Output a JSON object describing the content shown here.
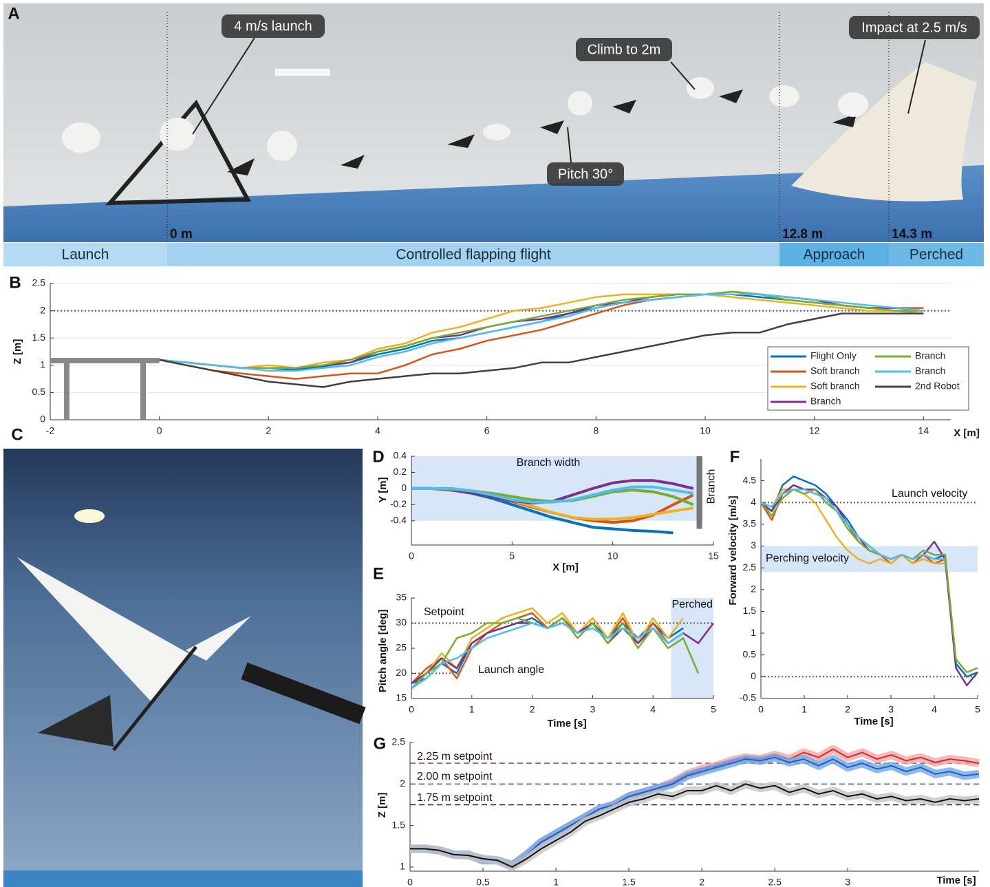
{
  "photo_a": {
    "panel": "A",
    "annotations": [
      "4 m/s launch",
      "Climb to 2m",
      "Pitch 30°",
      "Impact at 2.5 m/s"
    ],
    "distances": [
      "0 m",
      "12.8 m",
      "14.3 m"
    ],
    "phases": [
      "Launch",
      "Controlled flapping flight",
      "Approach",
      "Perched"
    ]
  },
  "photo_c": {
    "panel": "C"
  },
  "chart_data": [
    {
      "panel": "B",
      "type": "line",
      "xlabel": "X [m]",
      "ylabel": "Z [m]",
      "xlim": [
        -2,
        14.5
      ],
      "ylim": [
        0,
        2.5
      ],
      "xticks": [
        -2,
        0,
        2,
        4,
        6,
        8,
        10,
        12,
        14
      ],
      "yticks": [
        0,
        0.5,
        1,
        1.5,
        2,
        2.5
      ],
      "grid": true,
      "legend": "lower right",
      "reference_lines": [
        {
          "value": 2
        }
      ],
      "x": [
        0,
        0.5,
        1,
        1.5,
        2,
        2.5,
        3,
        3.5,
        4,
        4.5,
        5,
        5.5,
        6,
        6.5,
        7,
        7.5,
        8,
        8.5,
        9,
        9.5,
        10,
        10.5,
        11,
        11.5,
        12,
        12.5,
        13,
        13.5,
        14
      ],
      "series": [
        {
          "name": "Flight Only",
          "color": "#0072bd",
          "values": [
            1.1,
            1.05,
            1.0,
            0.95,
            0.95,
            0.92,
            0.98,
            1.05,
            1.2,
            1.3,
            1.45,
            1.5,
            1.6,
            1.7,
            1.8,
            1.95,
            2.05,
            2.15,
            2.2,
            2.25,
            2.3,
            2.3,
            2.25,
            2.2,
            2.15,
            2.1,
            2.05,
            2.05,
            2.0
          ]
        },
        {
          "name": "Soft branch",
          "color": "#d95319",
          "values": [
            1.1,
            1.0,
            0.9,
            0.85,
            0.8,
            0.75,
            0.8,
            0.85,
            0.85,
            1.0,
            1.2,
            1.3,
            1.45,
            1.55,
            1.65,
            1.8,
            1.95,
            2.1,
            2.2,
            2.25,
            2.3,
            2.35,
            2.3,
            2.25,
            2.2,
            2.1,
            2.05,
            2.05,
            2.05
          ]
        },
        {
          "name": "Soft branch",
          "color": "#edb120",
          "values": [
            1.1,
            1.05,
            1.0,
            0.95,
            1.0,
            0.95,
            1.05,
            1.1,
            1.3,
            1.4,
            1.6,
            1.7,
            1.85,
            2.0,
            2.05,
            2.15,
            2.25,
            2.3,
            2.3,
            2.3,
            2.3,
            2.25,
            2.2,
            2.15,
            2.1,
            2.05,
            2.0,
            2.0,
            1.95
          ]
        },
        {
          "name": "Branch",
          "color": "#7e2f8e",
          "values": [
            1.1,
            1.05,
            1.0,
            0.95,
            0.95,
            0.95,
            1.0,
            1.05,
            1.25,
            1.35,
            1.5,
            1.55,
            1.7,
            1.8,
            1.85,
            1.95,
            2.1,
            2.15,
            2.25,
            2.3,
            2.3,
            2.3,
            2.3,
            2.25,
            2.2,
            2.1,
            2.05,
            2.05,
            2.0
          ]
        },
        {
          "name": "Branch",
          "color": "#77ac30",
          "values": [
            1.1,
            1.05,
            1.0,
            0.95,
            0.95,
            0.95,
            1.0,
            1.1,
            1.25,
            1.35,
            1.5,
            1.6,
            1.7,
            1.8,
            1.9,
            2.0,
            2.1,
            2.2,
            2.25,
            2.3,
            2.3,
            2.35,
            2.3,
            2.2,
            2.15,
            2.1,
            2.05,
            2.0,
            2.0
          ]
        },
        {
          "name": "Branch",
          "color": "#4dbeee",
          "values": [
            1.1,
            1.05,
            1.0,
            0.95,
            0.9,
            0.9,
            0.95,
            1.0,
            1.15,
            1.25,
            1.4,
            1.5,
            1.6,
            1.7,
            1.8,
            1.9,
            2.05,
            2.15,
            2.2,
            2.25,
            2.3,
            2.3,
            2.3,
            2.25,
            2.2,
            2.15,
            2.1,
            2.05,
            2.0
          ]
        },
        {
          "name": "2nd Robot",
          "color": "#404040",
          "values": [
            1.1,
            1.0,
            0.9,
            0.8,
            0.7,
            0.65,
            0.6,
            0.7,
            0.75,
            0.8,
            0.85,
            0.85,
            0.9,
            0.95,
            1.05,
            1.05,
            1.15,
            1.25,
            1.35,
            1.45,
            1.55,
            1.6,
            1.6,
            1.75,
            1.85,
            1.95,
            1.95,
            1.95,
            1.95
          ]
        }
      ]
    },
    {
      "panel": "D",
      "type": "line",
      "xlabel": "X [m]",
      "ylabel": "Y [m]",
      "xlim": [
        0,
        15
      ],
      "ylim": [
        -0.7,
        0.4
      ],
      "xticks": [
        0,
        5,
        10,
        15
      ],
      "yticks": [
        -0.4,
        -0.2,
        0,
        0.2,
        0.4
      ],
      "band": {
        "label": "Branch width",
        "range": [
          -0.4,
          0.4
        ]
      },
      "branch": {
        "label": "Branch",
        "x": 14.3
      },
      "x": [
        0,
        1,
        2,
        3,
        4,
        5,
        6,
        7,
        8,
        9,
        10,
        11,
        12,
        13,
        14
      ],
      "series": [
        {
          "color": "#0072bd",
          "values": [
            0,
            0,
            -0.02,
            -0.06,
            -0.12,
            -0.2,
            -0.28,
            -0.36,
            -0.42,
            -0.48,
            -0.5,
            -0.52,
            -0.53,
            -0.55,
            null
          ]
        },
        {
          "color": "#d95319",
          "values": [
            0,
            0,
            -0.02,
            -0.05,
            -0.1,
            -0.16,
            -0.23,
            -0.3,
            -0.36,
            -0.4,
            -0.42,
            -0.4,
            -0.33,
            -0.2,
            -0.08
          ]
        },
        {
          "color": "#edb120",
          "values": [
            0,
            0,
            -0.01,
            -0.04,
            -0.08,
            -0.15,
            -0.22,
            -0.3,
            -0.36,
            -0.38,
            -0.38,
            -0.36,
            -0.32,
            -0.28,
            -0.24
          ]
        },
        {
          "color": "#7e2f8e",
          "values": [
            0,
            0,
            -0.02,
            -0.05,
            -0.1,
            -0.15,
            -0.18,
            -0.16,
            -0.08,
            0,
            0.07,
            0.1,
            0.1,
            0.06,
            0
          ]
        },
        {
          "color": "#77ac30",
          "values": [
            0,
            0,
            -0.01,
            -0.03,
            -0.06,
            -0.1,
            -0.14,
            -0.16,
            -0.15,
            -0.1,
            -0.04,
            -0.02,
            -0.04,
            -0.1,
            -0.2
          ]
        },
        {
          "color": "#4dbeee",
          "values": [
            0,
            0,
            0,
            -0.03,
            -0.08,
            -0.14,
            -0.17,
            -0.17,
            -0.14,
            -0.08,
            -0.02,
            0.02,
            0.02,
            -0.02,
            -0.06
          ]
        }
      ]
    },
    {
      "panel": "E",
      "type": "line",
      "xlabel": "Time [s]",
      "ylabel": "Pitch angle [deg]",
      "xlim": [
        0,
        5
      ],
      "ylim": [
        15,
        35
      ],
      "xticks": [
        0,
        1,
        2,
        3,
        4,
        5
      ],
      "yticks": [
        15,
        20,
        25,
        30,
        35
      ],
      "reference_lines": [
        {
          "value": 30,
          "label": "Setpoint"
        },
        {
          "value": 20,
          "label": "Launch angle",
          "xmax": 0.8
        }
      ],
      "shaded": {
        "label": "Perched",
        "xrange": [
          4.3,
          5
        ]
      },
      "x": [
        0,
        0.25,
        0.5,
        0.75,
        1,
        1.25,
        1.5,
        1.75,
        2,
        2.25,
        2.5,
        2.75,
        3,
        3.25,
        3.5,
        3.75,
        4,
        4.25,
        4.5,
        4.75,
        5
      ],
      "series": [
        {
          "color": "#0072bd",
          "values": [
            18,
            19,
            22,
            20,
            26,
            28,
            29,
            30,
            31,
            29,
            31,
            28,
            30,
            27,
            30,
            27,
            30,
            27,
            29,
            null,
            null
          ]
        },
        {
          "color": "#d95319",
          "values": [
            18,
            21,
            23,
            19,
            25,
            28,
            30,
            31,
            32,
            29,
            31,
            28,
            31,
            27,
            31,
            26,
            30,
            26,
            28,
            null,
            null
          ]
        },
        {
          "color": "#edb120",
          "values": [
            18,
            20,
            24,
            21,
            27,
            29,
            31,
            32,
            33,
            30,
            32,
            28,
            31,
            27,
            32,
            26,
            31,
            27,
            31,
            null,
            null
          ]
        },
        {
          "color": "#7e2f8e",
          "values": [
            18,
            20,
            23,
            21,
            26,
            28,
            29,
            30,
            30,
            29,
            30,
            28,
            30,
            26,
            29,
            26,
            29,
            26,
            28,
            26,
            30
          ]
        },
        {
          "color": "#77ac30",
          "values": [
            17,
            20,
            22,
            27,
            28,
            30,
            30,
            31,
            30,
            29,
            31,
            27,
            30,
            26,
            30,
            25,
            29,
            25,
            27,
            20,
            null
          ]
        },
        {
          "color": "#4dbeee",
          "values": [
            17,
            19,
            22,
            23,
            25,
            27,
            28,
            29,
            30,
            29,
            30,
            28,
            29,
            27,
            29,
            27,
            29,
            26,
            28,
            null,
            null
          ]
        }
      ]
    },
    {
      "panel": "F",
      "type": "line",
      "xlabel": "Time [s]",
      "ylabel": "Forward velocity [m/s]",
      "xlim": [
        0,
        5
      ],
      "ylim": [
        -0.5,
        5
      ],
      "xticks": [
        0,
        1,
        2,
        3,
        4,
        5
      ],
      "yticks": [
        -0.5,
        0,
        0.5,
        1,
        1.5,
        2,
        2.5,
        3,
        3.5,
        4,
        4.5
      ],
      "reference_lines": [
        {
          "value": 4,
          "label": "Launch velocity"
        },
        {
          "value": 0
        }
      ],
      "band": {
        "label": "Perching velocity",
        "range": [
          2.4,
          3
        ]
      },
      "x": [
        0,
        0.25,
        0.5,
        0.75,
        1,
        1.25,
        1.5,
        1.75,
        2,
        2.25,
        2.5,
        2.75,
        3,
        3.25,
        3.5,
        3.75,
        4,
        4.25,
        4.5,
        4.75,
        5
      ],
      "series": [
        {
          "color": "#0072bd",
          "values": [
            4,
            3.8,
            4.4,
            4.6,
            4.5,
            4.4,
            4.2,
            3.9,
            3.6,
            3.2,
            3.0,
            2.8,
            2.7,
            2.8,
            2.7,
            2.8,
            2.7,
            2.8,
            0.3,
            0,
            0.1
          ]
        },
        {
          "color": "#d95319",
          "values": [
            4,
            3.6,
            4.2,
            4.4,
            4.3,
            4.2,
            4.1,
            3.8,
            3.5,
            3.1,
            2.9,
            2.8,
            2.6,
            2.8,
            2.6,
            2.8,
            2.6,
            2.7,
            null,
            null,
            null
          ]
        },
        {
          "color": "#edb120",
          "values": [
            4,
            3.9,
            4.3,
            4.3,
            4.2,
            4.0,
            3.6,
            3.2,
            2.9,
            2.7,
            2.6,
            2.7,
            2.6,
            2.8,
            2.6,
            2.7,
            2.6,
            2.6,
            null,
            null,
            null
          ]
        },
        {
          "color": "#7e2f8e",
          "values": [
            4,
            3.8,
            4.2,
            4.4,
            4.3,
            4.3,
            4.1,
            3.9,
            3.5,
            3.2,
            2.9,
            2.8,
            2.7,
            2.8,
            2.7,
            2.8,
            3.1,
            2.7,
            0.2,
            -0.2,
            0.1
          ]
        },
        {
          "color": "#77ac30",
          "values": [
            4,
            3.7,
            4.1,
            4.3,
            4.2,
            4.3,
            4.0,
            3.8,
            3.4,
            3.1,
            2.9,
            2.8,
            2.7,
            2.8,
            2.7,
            2.9,
            2.8,
            2.8,
            0.4,
            0.1,
            0.2
          ]
        },
        {
          "color": "#4dbeee",
          "values": [
            4,
            3.9,
            4.2,
            4.3,
            4.3,
            4.2,
            4.1,
            3.8,
            3.5,
            3.2,
            3.0,
            2.8,
            2.7,
            2.8,
            2.7,
            2.8,
            2.7,
            2.7,
            null,
            null,
            null
          ]
        }
      ]
    },
    {
      "panel": "G",
      "type": "line",
      "xlabel": "Time [s]",
      "ylabel": "Z [m]",
      "xlim": [
        0,
        3.9
      ],
      "ylim": [
        0.95,
        2.5
      ],
      "xticks": [
        0,
        0.5,
        1,
        1.5,
        2,
        2.5,
        3
      ],
      "yticks": [
        1,
        1.5,
        2,
        2.5
      ],
      "reference_lines": [
        {
          "value": 2.25,
          "label": "2.25 m setpoint",
          "color": "#c0392b"
        },
        {
          "value": 2,
          "label": "2.00 m setpoint",
          "color": "#1f5fa0"
        },
        {
          "value": 1.75,
          "label": "1.75 m setpoint",
          "color": "#222222"
        }
      ],
      "x": [
        0,
        0.1,
        0.2,
        0.3,
        0.4,
        0.5,
        0.6,
        0.7,
        0.8,
        0.9,
        1,
        1.1,
        1.2,
        1.3,
        1.4,
        1.5,
        1.6,
        1.7,
        1.8,
        1.9,
        2,
        2.1,
        2.2,
        2.3,
        2.4,
        2.5,
        2.6,
        2.7,
        2.8,
        2.9,
        3,
        3.1,
        3.2,
        3.3,
        3.4,
        3.5,
        3.6,
        3.7,
        3.8,
        3.9
      ],
      "series": [
        {
          "color": "#d62728",
          "band_color": "#f4a6a6",
          "values": [
            1.22,
            1.22,
            1.2,
            1.15,
            1.14,
            1.09,
            1.08,
            1.02,
            1.14,
            1.3,
            1.4,
            1.5,
            1.6,
            1.7,
            1.75,
            1.85,
            1.9,
            1.95,
            2.02,
            2.12,
            2.18,
            2.22,
            2.28,
            2.32,
            2.3,
            2.35,
            2.3,
            2.38,
            2.32,
            2.42,
            2.32,
            2.38,
            2.3,
            2.35,
            2.28,
            2.32,
            2.26,
            2.3,
            2.28,
            2.25
          ]
        },
        {
          "color": "#1f5fbf",
          "band_color": "#6fa8ea",
          "values": [
            1.22,
            1.22,
            1.2,
            1.15,
            1.15,
            1.08,
            1.08,
            1.02,
            1.15,
            1.3,
            1.4,
            1.5,
            1.6,
            1.7,
            1.75,
            1.85,
            1.9,
            1.95,
            2.0,
            2.1,
            2.15,
            2.2,
            2.25,
            2.3,
            2.28,
            2.32,
            2.26,
            2.3,
            2.22,
            2.3,
            2.2,
            2.25,
            2.18,
            2.22,
            2.15,
            2.2,
            2.12,
            2.15,
            2.1,
            2.12
          ]
        },
        {
          "color": "#111111",
          "band_color": "#c4c4c4",
          "values": [
            1.22,
            1.22,
            1.2,
            1.15,
            1.14,
            1.1,
            1.08,
            1.0,
            1.1,
            1.22,
            1.32,
            1.42,
            1.55,
            1.62,
            1.7,
            1.78,
            1.82,
            1.88,
            1.85,
            1.92,
            1.92,
            1.98,
            1.92,
            2.0,
            1.95,
            1.98,
            1.9,
            1.95,
            1.88,
            1.92,
            1.85,
            1.88,
            1.82,
            1.85,
            1.8,
            1.82,
            1.78,
            1.82,
            1.8,
            1.82
          ]
        }
      ]
    }
  ]
}
